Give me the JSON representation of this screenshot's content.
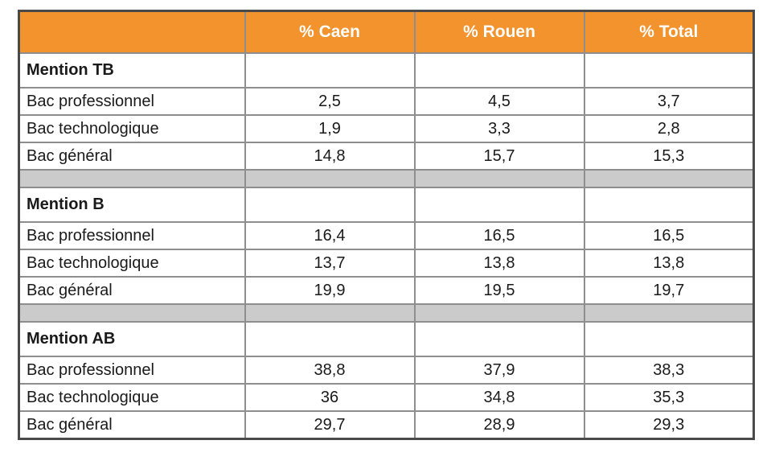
{
  "chart_data": {
    "type": "table",
    "columns": [
      "",
      "% Caen",
      "% Rouen",
      "% Total"
    ],
    "sections": [
      {
        "title": "Mention TB",
        "rows": [
          [
            "Bac professionnel",
            "2,5",
            "4,5",
            "3,7"
          ],
          [
            "Bac technologique",
            "1,9",
            "3,3",
            "2,8"
          ],
          [
            "Bac général",
            "14,8",
            "15,7",
            "15,3"
          ]
        ]
      },
      {
        "title": "Mention B",
        "rows": [
          [
            "Bac professionnel",
            "16,4",
            "16,5",
            "16,5"
          ],
          [
            "Bac technologique",
            "13,7",
            "13,8",
            "13,8"
          ],
          [
            "Bac général",
            "19,9",
            "19,5",
            "19,7"
          ]
        ]
      },
      {
        "title": "Mention AB",
        "rows": [
          [
            "Bac professionnel",
            "38,8",
            "37,9",
            "38,3"
          ],
          [
            "Bac technologique",
            "36",
            "34,8",
            "35,3"
          ],
          [
            "Bac général",
            "29,7",
            "28,9",
            "29,3"
          ]
        ]
      }
    ],
    "layout": {
      "separator_rows_between_sections": true,
      "value_alignment": "center",
      "label_alignment": "left"
    }
  },
  "colors": {
    "header_bg": "#F2932E",
    "header_text": "#FFFFFF",
    "separator_bg": "#CBCBCB",
    "inner_border": "#8E8E8E",
    "outer_border": "#4A4A4A",
    "body_text": "#1A1A1A"
  }
}
